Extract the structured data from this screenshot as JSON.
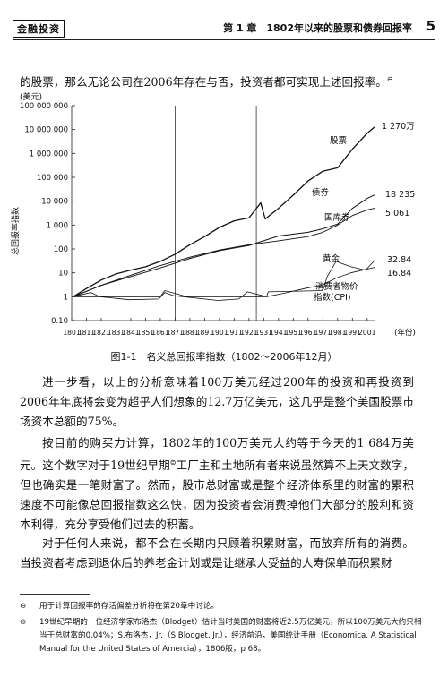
{
  "header": {
    "series": "金融投资",
    "chapter": "第 1 章　1802年以来的股票和债券回报率",
    "page_number": "5"
  },
  "body": {
    "para1": "的股票，那么无论公司在2006年存在与否，投资者都可实现上述回报率。",
    "para1_mark": "⊖",
    "para2": "进一步看，以上的分析意味着100万美元经过200年的投资和再投资到2006年年底将会变为超乎人们想象的12.7万亿美元，这几乎是整个美国股票市场资本总额的75%。",
    "para3_a": "按目前的购买力计算，1802年的100万美元大约等于今天的1 684万美元。这个数字对于19世纪早期",
    "para3_mark": "⊜",
    "para3_b": "工厂主和土地所有者来说虽然算不上天文数字，但也确实是一笔财富了。然而，股市总财富或是整个经济体系里的财富的累积速度不可能像总回报指数这么快，因为投资者会消费掉他们大部分的股利和资本利得，充分享受他们过去的积蓄。",
    "para4": "对于任何人来说，都不会在长期内只顾着积累财富，而放弃所有的消费。当投资者考虑到退休后的养老金计划或是让继承人受益的人寿保单而积累财"
  },
  "figure": {
    "caption": "图1-1　名义总回报率指数（1802～2006年12月）"
  },
  "footnotes": [
    {
      "mark": "⊖",
      "text": "用于计算回报率的存活偏差分析将在第20章中讨论。"
    },
    {
      "mark": "⊜",
      "text": "19世纪早期的一位经济学家布洛杰（Blodget）估计当时美国的财富将近2.5万亿美元，所以100万美元大约只相当于总财富的0.04%；S.布洛杰，Jr.（S.Blodget, Jr.），经济前沿，美国统计手册（Economica, A Statistical Manual for the United States of Amercia），1806版，p 68。"
    }
  ],
  "chart_data": {
    "type": "line",
    "title": "",
    "ylabel": "总回报率指数",
    "yunit": "(美元)",
    "xunit": "(年份)",
    "yscale": "log",
    "ylim": [
      0.1,
      100000000
    ],
    "xlim": [
      1801,
      2006
    ],
    "y_ticks": [
      {
        "v": 100000000,
        "label": "100 000 000"
      },
      {
        "v": 10000000,
        "label": "10 000 000"
      },
      {
        "v": 1000000,
        "label": "1 000 000"
      },
      {
        "v": 100000,
        "label": "100 000"
      },
      {
        "v": 10000,
        "label": "10 000"
      },
      {
        "v": 1000,
        "label": "1 000"
      },
      {
        "v": 100,
        "label": "100"
      },
      {
        "v": 10,
        "label": "10"
      },
      {
        "v": 1,
        "label": "1"
      },
      {
        "v": 0.1,
        "label": "0.10"
      }
    ],
    "x_ticks": [
      1801,
      1811,
      1821,
      1831,
      1841,
      1851,
      1861,
      1871,
      1881,
      1891,
      1901,
      1911,
      1921,
      1931,
      1941,
      1951,
      1961,
      1971,
      1981,
      1991,
      2001
    ],
    "vlines": [
      1871,
      1926
    ],
    "series": [
      {
        "name": "股票",
        "end_label": "1 270万",
        "x": [
          1802,
          1811,
          1821,
          1831,
          1841,
          1851,
          1861,
          1871,
          1881,
          1891,
          1901,
          1911,
          1921,
          1929,
          1932,
          1941,
          1951,
          1961,
          1971,
          1981,
          1991,
          2001,
          2006
        ],
        "y": [
          1,
          2.2,
          5,
          9,
          13,
          18,
          30,
          60,
          150,
          330,
          800,
          1500,
          2000,
          8500,
          1800,
          5000,
          18000,
          70000,
          180000,
          250000,
          1500000,
          7000000,
          12700000
        ]
      },
      {
        "name": "债券",
        "end_label": "18 235",
        "x": [
          1802,
          1821,
          1841,
          1861,
          1881,
          1901,
          1921,
          1941,
          1961,
          1971,
          1981,
          1991,
          2001,
          2006
        ],
        "y": [
          1,
          3,
          7,
          16,
          40,
          85,
          140,
          350,
          500,
          700,
          1100,
          5000,
          13000,
          18235
        ]
      },
      {
        "name": "国库券",
        "end_label": "5 061",
        "x": [
          1802,
          1821,
          1841,
          1861,
          1881,
          1901,
          1921,
          1941,
          1961,
          1971,
          1981,
          1991,
          2001,
          2006
        ],
        "y": [
          1,
          3,
          8,
          20,
          45,
          90,
          150,
          220,
          330,
          500,
          1000,
          2500,
          4300,
          5061
        ]
      },
      {
        "name": "黄金",
        "end_label": "32.84",
        "x": [
          1802,
          1861,
          1864,
          1879,
          1921,
          1933,
          1934,
          1971,
          1974,
          1980,
          1990,
          2000,
          2006
        ],
        "y": [
          1,
          1,
          1.8,
          1,
          1,
          1,
          1.6,
          1.8,
          7,
          30,
          18,
          13,
          32.84
        ]
      },
      {
        "name": "消费者物价指数(CPI)",
        "end_label": "16.84",
        "x": [
          1802,
          1814,
          1820,
          1840,
          1860,
          1864,
          1870,
          1900,
          1914,
          1920,
          1933,
          1945,
          1960,
          1970,
          1980,
          1990,
          2006
        ],
        "y": [
          1,
          1.5,
          1.0,
          0.75,
          0.8,
          1.5,
          1.1,
          0.7,
          0.8,
          1.6,
          1.0,
          1.4,
          2.3,
          3,
          6,
          10,
          16.84
        ]
      }
    ]
  }
}
